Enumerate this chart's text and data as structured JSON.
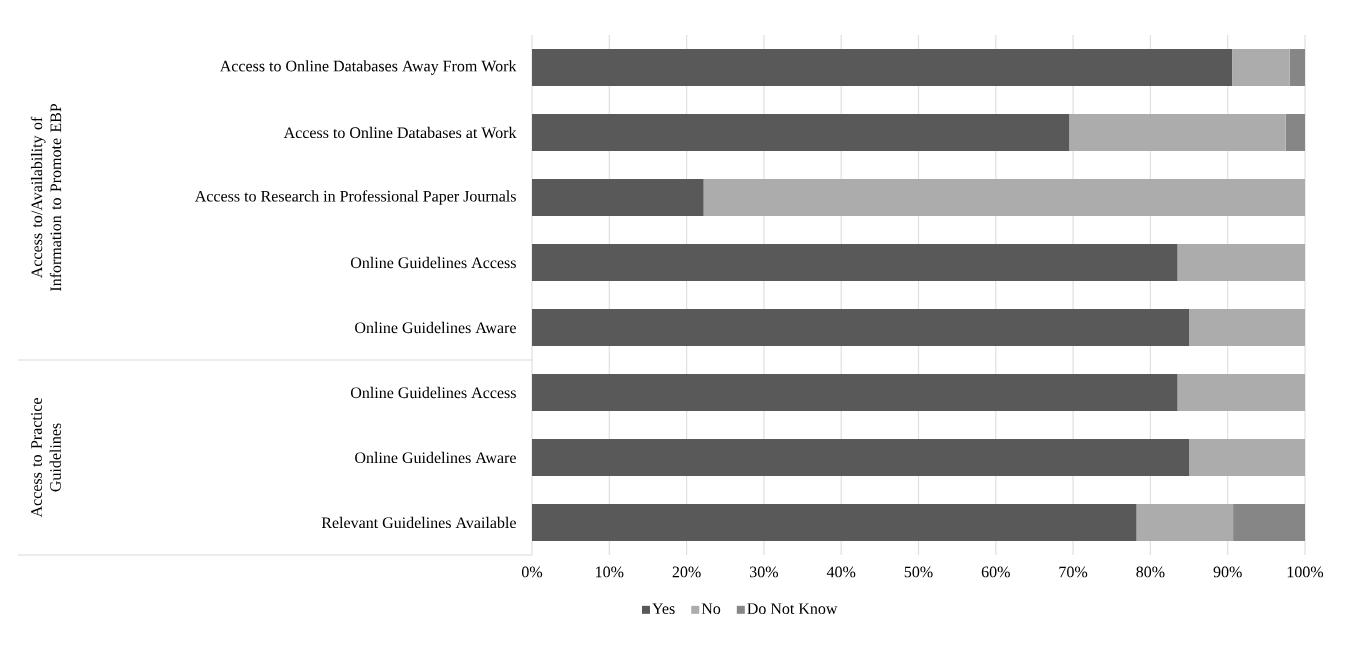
{
  "chart_data": {
    "type": "bar",
    "orientation": "horizontal",
    "stacked": true,
    "categories": [
      "Access to Online Databases Away From Work",
      "Access to Online Databases at Work",
      "Access to Research in Professional Paper Journals",
      "Online Guidelines Access",
      "Online Guidelines Aware",
      "Online Guidelines Access",
      "Online Guidelines Aware",
      "Relevant Guidelines Available"
    ],
    "series": [
      {
        "name": "Yes",
        "color": "#595959",
        "values": [
          90.6,
          69.5,
          22.2,
          83.5,
          85.0,
          83.5,
          85.0,
          78.2
        ]
      },
      {
        "name": "No",
        "color": "#acacac",
        "values": [
          7.4,
          28.0,
          77.8,
          16.5,
          15.0,
          16.5,
          15.0,
          12.5
        ]
      },
      {
        "name": "Do Not Know",
        "color": "#868686",
        "values": [
          2.0,
          2.5,
          0,
          0,
          0,
          0,
          0,
          9.3
        ]
      }
    ],
    "xlim": [
      0,
      100
    ],
    "xticks": [
      {
        "value": 0,
        "label": "0%"
      },
      {
        "value": 10,
        "label": "10%"
      },
      {
        "value": 20,
        "label": "20%"
      },
      {
        "value": 30,
        "label": "30%"
      },
      {
        "value": 40,
        "label": "40%"
      },
      {
        "value": 50,
        "label": "50%"
      },
      {
        "value": 60,
        "label": "60%"
      },
      {
        "value": 70,
        "label": "70%"
      },
      {
        "value": 80,
        "label": "80%"
      },
      {
        "value": 90,
        "label": "90%"
      },
      {
        "value": 100,
        "label": "100%"
      }
    ],
    "grid": "x",
    "legend": "bottom",
    "annotations": [
      "Access to/Availability of Information to Promote EBP",
      "Access to Practice Guidelines"
    ]
  }
}
